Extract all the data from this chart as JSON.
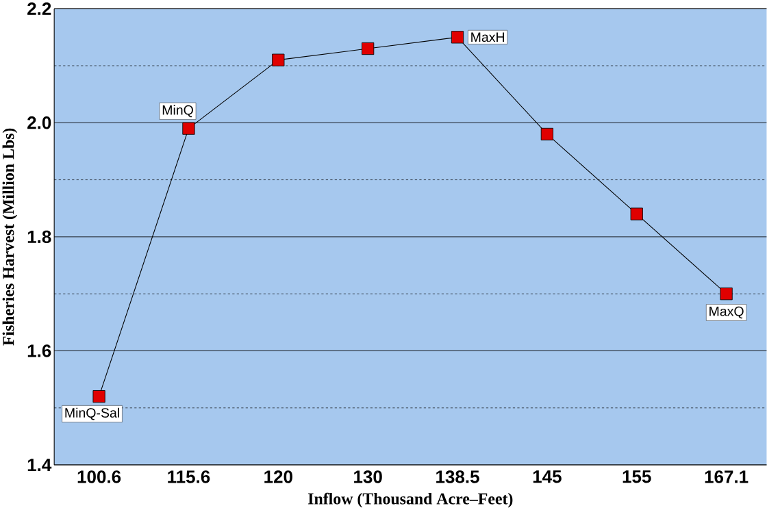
{
  "chart_data": {
    "type": "line",
    "xlabel": "Inflow (Thousand Acre–Feet)",
    "ylabel": "Fisheries Harvest (Million Lbs)",
    "categories": [
      "100.6",
      "115.6",
      "120",
      "130",
      "138.5",
      "145",
      "155",
      "167.1"
    ],
    "series": [
      {
        "color": "#e00000",
        "values": [
          1.52,
          1.99,
          2.11,
          2.13,
          2.15,
          1.98,
          1.84,
          1.7
        ]
      }
    ],
    "ylim": [
      1.4,
      2.2
    ],
    "yticks": [
      1.4,
      {
        "value": 1.5,
        "label": null
      },
      1.6,
      {
        "value": 1.7,
        "label": null
      },
      1.8,
      {
        "value": 1.9,
        "label": null
      },
      {
        "value": 2.0,
        "label": "2.0"
      },
      {
        "value": 2.1,
        "label": null
      },
      2.2
    ],
    "grid": "y",
    "marker": "square",
    "line_style": "solid",
    "annotations": [
      {
        "text": "MinQ-Sal",
        "x": "100.6",
        "y": 1.52
      },
      {
        "text": "MinQ",
        "x": "115.6",
        "y": 1.99
      },
      {
        "text": "MaxH",
        "x": "138.5",
        "y": 2.15
      },
      {
        "text": "MaxQ",
        "x": "167.1",
        "y": 1.7
      }
    ]
  }
}
